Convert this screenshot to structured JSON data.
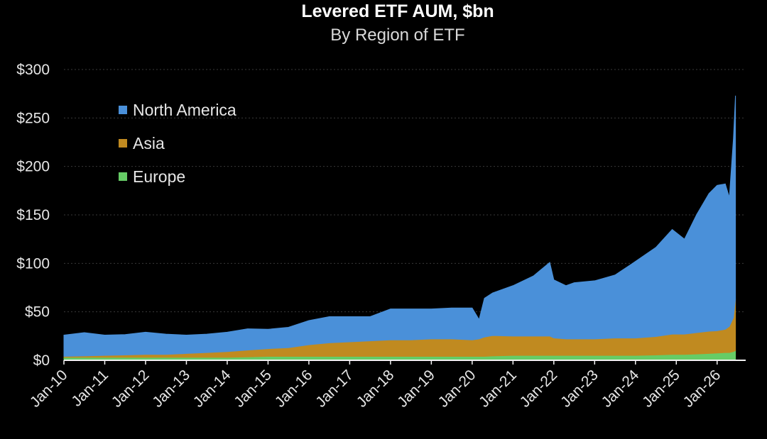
{
  "chart_data": {
    "type": "area",
    "stacked": true,
    "title": "Levered ETF AUM, $bn",
    "subtitle": "By Region of ETF",
    "xlabel": "",
    "ylabel": "",
    "ylim": [
      0,
      300
    ],
    "yticks": [
      0,
      50,
      100,
      150,
      200,
      250,
      300
    ],
    "ytick_labels": [
      "$0",
      "$50",
      "$100",
      "$150",
      "$200",
      "$250",
      "$300"
    ],
    "xlim": [
      2010.0,
      2026.7
    ],
    "xticks": [
      2010,
      2011,
      2012,
      2013,
      2014,
      2015,
      2016,
      2017,
      2018,
      2019,
      2020,
      2021,
      2022,
      2023,
      2024,
      2025,
      2026
    ],
    "xtick_labels": [
      "Jan-10",
      "Jan-11",
      "Jan-12",
      "Jan-13",
      "Jan-14",
      "Jan-15",
      "Jan-16",
      "Jan-17",
      "Jan-18",
      "Jan-19",
      "Jan-20",
      "Jan-21",
      "Jan-22",
      "Jan-23",
      "Jan-24",
      "Jan-25",
      "Jan-26"
    ],
    "grid": "horizontal dotted",
    "legend_position": "top-left",
    "x": [
      2010.0,
      2010.5,
      2011.0,
      2011.5,
      2012.0,
      2012.5,
      2013.0,
      2013.5,
      2014.0,
      2014.5,
      2015.0,
      2015.5,
      2016.0,
      2016.5,
      2017.0,
      2017.5,
      2018.0,
      2018.5,
      2019.0,
      2019.5,
      2020.0,
      2020.17,
      2020.3,
      2020.5,
      2021.0,
      2021.5,
      2021.9,
      2022.0,
      2022.3,
      2022.5,
      2023.0,
      2023.5,
      2024.0,
      2024.5,
      2024.9,
      2025.2,
      2025.5,
      2025.8,
      2026.0,
      2026.2,
      2026.3,
      2026.4,
      2026.45
    ],
    "series": [
      {
        "name": "Europe",
        "color": "#66cc66",
        "values": [
          3,
          3,
          3,
          3,
          3,
          3,
          3,
          3,
          3,
          3.5,
          4,
          4,
          4,
          4,
          4,
          4,
          4,
          4,
          4,
          4,
          4,
          4,
          4,
          4.5,
          5,
          5,
          5,
          5,
          5,
          5,
          5,
          5,
          5,
          5.5,
          6,
          6,
          6.5,
          7,
          7.5,
          8,
          8,
          9,
          10
        ]
      },
      {
        "name": "Asia",
        "color": "#c08a20",
        "values": [
          1,
          1.5,
          2,
          2.5,
          3,
          3,
          4,
          5,
          6,
          7,
          8,
          9,
          12,
          14,
          15,
          16,
          17,
          17,
          18,
          18,
          17,
          18,
          20,
          21,
          20,
          20,
          20,
          18,
          17,
          17,
          17,
          18,
          18,
          19,
          21,
          21,
          22,
          23,
          23,
          24,
          27,
          35,
          53
        ]
      },
      {
        "name": "North America",
        "color": "#4a90d9",
        "values": [
          22,
          24,
          21,
          21,
          23,
          21,
          19,
          19,
          20,
          22,
          20,
          21,
          25,
          27,
          26,
          25,
          32,
          32,
          31,
          32,
          33,
          20,
          40,
          44,
          52,
          62,
          76,
          60,
          55,
          58,
          60,
          65,
          79,
          92,
          108,
          98,
          122,
          142,
          150,
          150,
          133,
          185,
          210
        ]
      }
    ]
  }
}
